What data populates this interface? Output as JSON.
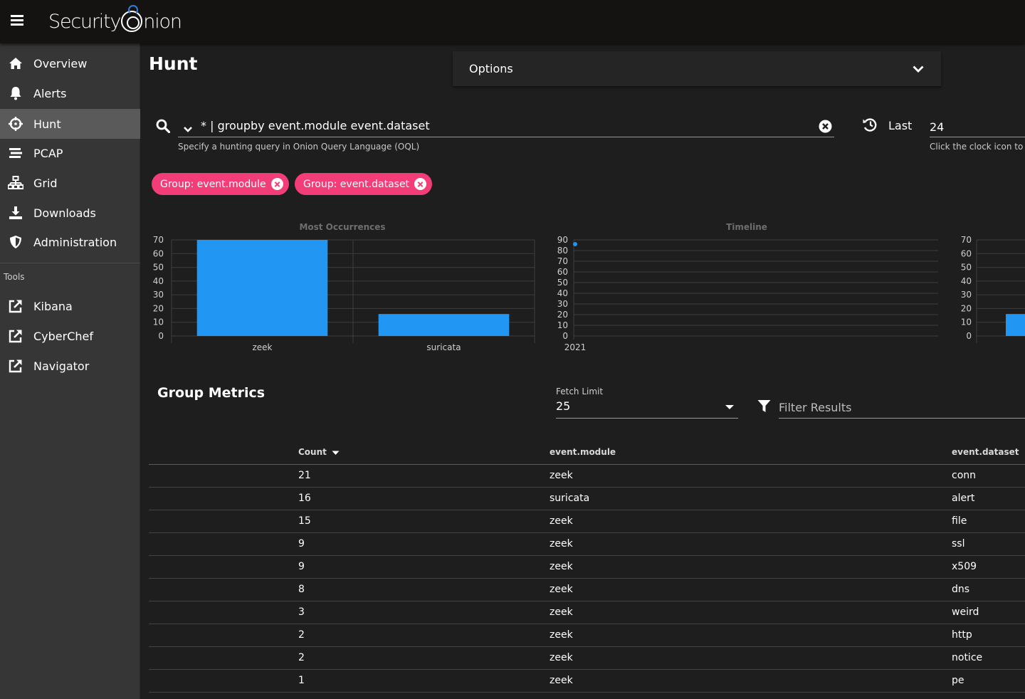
{
  "app": {
    "logo_text_left": "Security",
    "logo_text_right": "nion"
  },
  "sidebar": {
    "items": [
      {
        "label": "Overview",
        "icon": "home-icon"
      },
      {
        "label": "Alerts",
        "icon": "bell-icon"
      },
      {
        "label": "Hunt",
        "icon": "crosshairs-icon",
        "active": true
      },
      {
        "label": "PCAP",
        "icon": "stream-icon"
      },
      {
        "label": "Grid",
        "icon": "sitemap-icon"
      },
      {
        "label": "Downloads",
        "icon": "download-icon"
      },
      {
        "label": "Administration",
        "icon": "shield-icon"
      }
    ],
    "tools_label": "Tools",
    "tools": [
      {
        "label": "Kibana",
        "icon": "external-link-icon"
      },
      {
        "label": "CyberChef",
        "icon": "external-link-icon"
      },
      {
        "label": "Navigator",
        "icon": "external-link-icon"
      }
    ]
  },
  "page": {
    "title": "Hunt"
  },
  "options": {
    "label": "Options"
  },
  "query": {
    "value": "* | groupby event.module event.dataset",
    "hint": "Specify a hunting query in Onion Query Language (OQL)"
  },
  "time_range": {
    "label": "Last",
    "value": "24",
    "hint": "Click the clock icon to"
  },
  "chips": [
    {
      "label": "Group: event.module"
    },
    {
      "label": "Group: event.dataset"
    }
  ],
  "charts": {
    "most_occurrences_title": "Most Occurrences",
    "timeline_title": "Timeline"
  },
  "chart_data": [
    {
      "type": "bar",
      "title": "Most Occurrences",
      "categories": [
        "zeek",
        "suricata"
      ],
      "values": [
        70,
        16
      ],
      "yticks": [
        0,
        10,
        20,
        30,
        40,
        50,
        60,
        70
      ],
      "ylim": [
        0,
        70
      ],
      "color": "#2196f3"
    },
    {
      "type": "scatter",
      "title": "Timeline",
      "x": [
        "2021"
      ],
      "values": [
        86
      ],
      "yticks": [
        0,
        10,
        20,
        30,
        40,
        50,
        60,
        70,
        80,
        90
      ],
      "ylim": [
        0,
        90
      ],
      "color": "#2196f3"
    },
    {
      "type": "bar",
      "title": "",
      "values": [
        16
      ],
      "yticks": [
        0,
        10,
        20,
        30,
        40,
        50,
        60,
        70
      ],
      "ylim": [
        0,
        70
      ],
      "color": "#2196f3"
    }
  ],
  "metrics": {
    "title": "Group Metrics",
    "fetch_limit_label": "Fetch Limit",
    "fetch_limit_value": "25",
    "filter_placeholder": "Filter Results",
    "columns": [
      "Count",
      "event.module",
      "event.dataset"
    ],
    "rows": [
      {
        "count": "21",
        "module": "zeek",
        "dataset": "conn"
      },
      {
        "count": "16",
        "module": "suricata",
        "dataset": "alert"
      },
      {
        "count": "15",
        "module": "zeek",
        "dataset": "file"
      },
      {
        "count": "9",
        "module": "zeek",
        "dataset": "ssl"
      },
      {
        "count": "9",
        "module": "zeek",
        "dataset": "x509"
      },
      {
        "count": "8",
        "module": "zeek",
        "dataset": "dns"
      },
      {
        "count": "3",
        "module": "zeek",
        "dataset": "weird"
      },
      {
        "count": "2",
        "module": "zeek",
        "dataset": "http"
      },
      {
        "count": "2",
        "module": "zeek",
        "dataset": "notice"
      },
      {
        "count": "1",
        "module": "zeek",
        "dataset": "pe"
      }
    ]
  }
}
